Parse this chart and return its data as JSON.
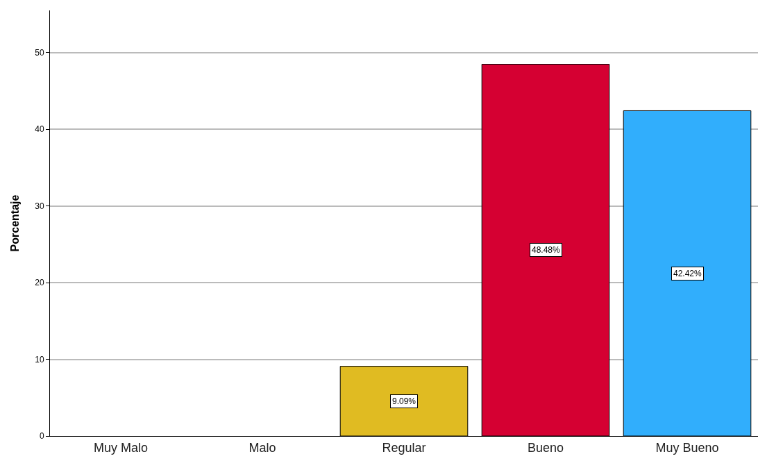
{
  "chart_data": {
    "type": "bar",
    "ylabel": "Porcentaje",
    "categories": [
      "Muy Malo",
      "Malo",
      "Regular",
      "Bueno",
      "Muy Bueno"
    ],
    "values": [
      0,
      0,
      9.09,
      48.48,
      42.42
    ],
    "colors": [
      "#e0bb22",
      "#e0bb22",
      "#e0bb22",
      "#d50032",
      "#31aefc"
    ],
    "value_labels": [
      null,
      null,
      "9.09%",
      "48.48%",
      "42.42%"
    ],
    "ylim": [
      0,
      55.5
    ],
    "yticks": [
      0,
      10,
      20,
      30,
      40,
      50
    ],
    "grid": "y"
  }
}
